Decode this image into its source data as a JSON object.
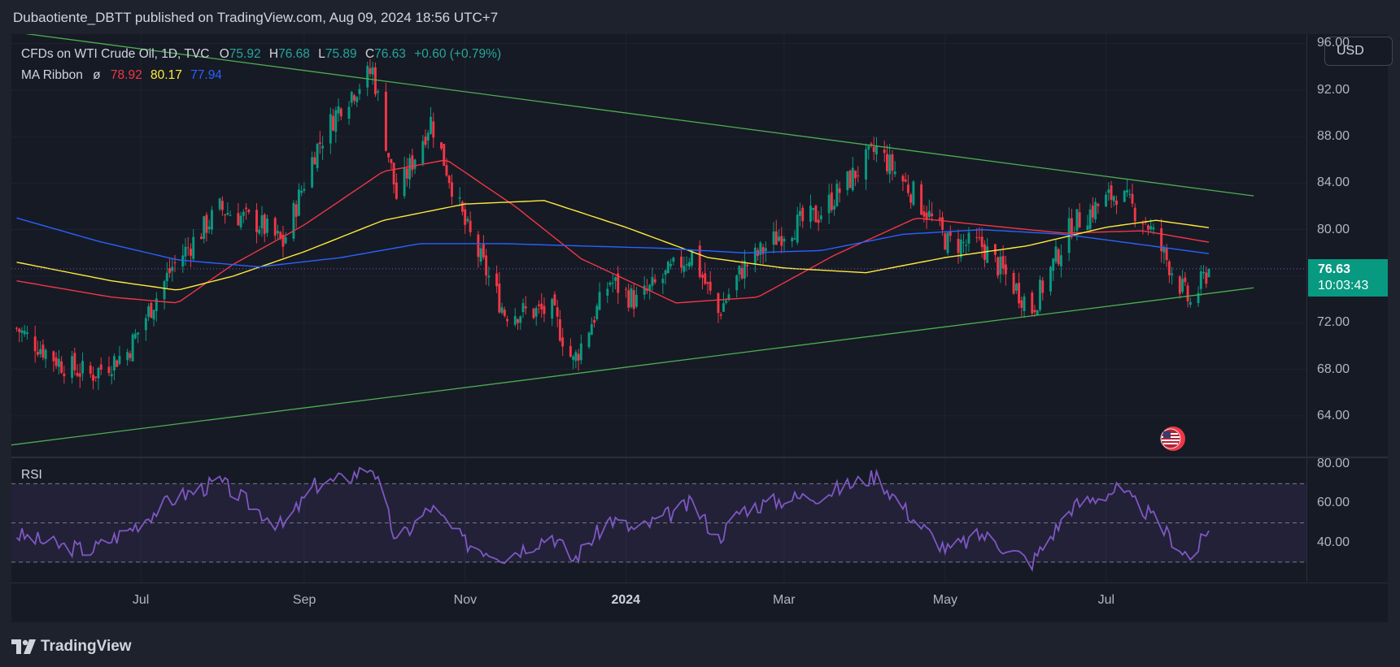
{
  "header": {
    "publisher_line": "Dubaotiente_DBTT published on TradingView.com, Aug 09, 2024 18:56 UTC+7"
  },
  "legend": {
    "symbol": "CFDs on WTI Crude Oil, 1D, TVC",
    "o_label": "O",
    "o_value": "75.92",
    "h_label": "H",
    "h_value": "76.68",
    "l_label": "L",
    "l_value": "75.89",
    "c_label": "C",
    "c_value": "76.63",
    "change": "+0.60 (+0.79%)",
    "ma_title": "MA Ribbon",
    "ma_symbol": "ø",
    "ma1": "78.92",
    "ma2": "80.17",
    "ma3": "77.94"
  },
  "currency": "USD",
  "last_price": {
    "price": "76.63",
    "countdown": "10:03:43"
  },
  "rsi_title": "RSI",
  "brand": "TradingView",
  "colors": {
    "background": "#161a25",
    "up": "#089981",
    "down": "#f23645",
    "ma_fast": "#f23645",
    "ma_mid": "#ffeb3b",
    "ma_slow": "#2962ff",
    "trendline": "#4caf50",
    "rsi": "#7e57c2"
  },
  "icons": {
    "logo": "tradingview-logo-icon",
    "flag": "us-flag-icon"
  },
  "chart_data": [
    {
      "type": "candlestick",
      "title": "CFDs on WTI Crude Oil, 1D, TVC",
      "y_ticks": [
        "96.00",
        "92.00",
        "88.00",
        "84.00",
        "80.00",
        "76.00",
        "72.00",
        "68.00",
        "64.00"
      ],
      "ylim": [
        60.5,
        96.8
      ],
      "x_ticks": [
        {
          "label": "Jul",
          "date": "2023-07-01"
        },
        {
          "label": "Sep",
          "date": "2023-09-01"
        },
        {
          "label": "Nov",
          "date": "2023-11-01"
        },
        {
          "label": "2024",
          "date": "2024-01-01"
        },
        {
          "label": "Mar",
          "date": "2024-03-01"
        },
        {
          "label": "May",
          "date": "2024-05-01"
        },
        {
          "label": "Jul",
          "date": "2024-07-01"
        }
      ],
      "xlim": [
        "2023-05-13",
        "2024-09-15"
      ],
      "last_candle": {
        "date": "2024-08-09",
        "open": 75.92,
        "high": 76.68,
        "low": 75.89,
        "close": 76.63
      },
      "price_anchors": [
        {
          "date": "2023-05-15",
          "close": 71.5
        },
        {
          "date": "2023-06-01",
          "close": 68.5
        },
        {
          "date": "2023-06-12",
          "close": 67.5
        },
        {
          "date": "2023-06-26",
          "close": 69.5
        },
        {
          "date": "2023-07-13",
          "close": 76.8
        },
        {
          "date": "2023-07-31",
          "close": 81.8
        },
        {
          "date": "2023-08-15",
          "close": 80.5
        },
        {
          "date": "2023-08-24",
          "close": 78.8
        },
        {
          "date": "2023-09-05",
          "close": 86.7
        },
        {
          "date": "2023-09-15",
          "close": 90.8
        },
        {
          "date": "2023-09-27",
          "close": 93.7
        },
        {
          "date": "2023-10-06",
          "close": 82.8
        },
        {
          "date": "2023-10-19",
          "close": 89.4
        },
        {
          "date": "2023-11-01",
          "close": 80.4
        },
        {
          "date": "2023-11-16",
          "close": 72.9
        },
        {
          "date": "2023-12-04",
          "close": 73.0
        },
        {
          "date": "2023-12-12",
          "close": 68.6
        },
        {
          "date": "2023-12-26",
          "close": 75.6
        },
        {
          "date": "2024-01-05",
          "close": 73.8
        },
        {
          "date": "2024-01-26",
          "close": 78.0
        },
        {
          "date": "2024-02-05",
          "close": 72.8
        },
        {
          "date": "2024-02-14",
          "close": 76.6
        },
        {
          "date": "2024-03-01",
          "close": 79.9
        },
        {
          "date": "2024-03-14",
          "close": 81.3
        },
        {
          "date": "2024-04-05",
          "close": 86.9
        },
        {
          "date": "2024-04-19",
          "close": 83.1
        },
        {
          "date": "2024-05-02",
          "close": 78.9
        },
        {
          "date": "2024-05-15",
          "close": 78.6
        },
        {
          "date": "2024-06-03",
          "close": 73.2
        },
        {
          "date": "2024-06-18",
          "close": 80.4
        },
        {
          "date": "2024-07-05",
          "close": 83.2
        },
        {
          "date": "2024-07-16",
          "close": 80.8
        },
        {
          "date": "2024-08-02",
          "close": 73.6
        },
        {
          "date": "2024-08-09",
          "close": 76.63
        }
      ],
      "ma_ribbon": [
        {
          "name": "MA Ribbon 1",
          "last": 78.92,
          "points": [
            {
              "date": "2023-05-15",
              "value": 75.6
            },
            {
              "date": "2023-06-20",
              "value": 74.2
            },
            {
              "date": "2023-07-15",
              "value": 73.7
            },
            {
              "date": "2023-08-05",
              "value": 77.0
            },
            {
              "date": "2023-09-01",
              "value": 80.4
            },
            {
              "date": "2023-10-01",
              "value": 85.0
            },
            {
              "date": "2023-10-25",
              "value": 86.0
            },
            {
              "date": "2023-11-20",
              "value": 82.0
            },
            {
              "date": "2023-12-15",
              "value": 77.5
            },
            {
              "date": "2024-01-20",
              "value": 73.7
            },
            {
              "date": "2024-02-20",
              "value": 74.2
            },
            {
              "date": "2024-03-20",
              "value": 77.8
            },
            {
              "date": "2024-04-20",
              "value": 81.0
            },
            {
              "date": "2024-05-15",
              "value": 80.4
            },
            {
              "date": "2024-06-15",
              "value": 79.7
            },
            {
              "date": "2024-07-15",
              "value": 79.9
            },
            {
              "date": "2024-08-09",
              "value": 78.92
            }
          ]
        },
        {
          "name": "MA Ribbon 2",
          "last": 80.17,
          "points": [
            {
              "date": "2023-05-15",
              "value": 77.2
            },
            {
              "date": "2023-06-20",
              "value": 75.6
            },
            {
              "date": "2023-07-15",
              "value": 74.8
            },
            {
              "date": "2023-08-05",
              "value": 76.0
            },
            {
              "date": "2023-09-01",
              "value": 78.1
            },
            {
              "date": "2023-10-01",
              "value": 80.8
            },
            {
              "date": "2023-11-01",
              "value": 82.2
            },
            {
              "date": "2023-12-01",
              "value": 82.5
            },
            {
              "date": "2024-01-01",
              "value": 80.2
            },
            {
              "date": "2024-02-01",
              "value": 77.6
            },
            {
              "date": "2024-03-01",
              "value": 76.7
            },
            {
              "date": "2024-04-01",
              "value": 76.3
            },
            {
              "date": "2024-05-01",
              "value": 77.6
            },
            {
              "date": "2024-06-01",
              "value": 78.6
            },
            {
              "date": "2024-07-01",
              "value": 80.2
            },
            {
              "date": "2024-07-20",
              "value": 80.8
            },
            {
              "date": "2024-08-09",
              "value": 80.17
            }
          ]
        },
        {
          "name": "MA Ribbon 3",
          "last": 77.94,
          "points": [
            {
              "date": "2023-05-15",
              "value": 81.0
            },
            {
              "date": "2023-06-15",
              "value": 79.0
            },
            {
              "date": "2023-07-15",
              "value": 77.4
            },
            {
              "date": "2023-08-15",
              "value": 76.8
            },
            {
              "date": "2023-09-15",
              "value": 77.6
            },
            {
              "date": "2023-10-15",
              "value": 78.8
            },
            {
              "date": "2023-11-15",
              "value": 78.8
            },
            {
              "date": "2023-12-15",
              "value": 78.6
            },
            {
              "date": "2024-01-15",
              "value": 78.4
            },
            {
              "date": "2024-02-15",
              "value": 78.0
            },
            {
              "date": "2024-03-15",
              "value": 78.2
            },
            {
              "date": "2024-04-15",
              "value": 79.6
            },
            {
              "date": "2024-05-15",
              "value": 80.0
            },
            {
              "date": "2024-06-15",
              "value": 79.6
            },
            {
              "date": "2024-07-15",
              "value": 78.7
            },
            {
              "date": "2024-08-09",
              "value": 77.94
            }
          ]
        }
      ],
      "trendlines": [
        {
          "name": "upper",
          "start": {
            "date": "2023-05-13",
            "value": 97.0
          },
          "end": {
            "date": "2024-08-26",
            "value": 82.9
          }
        },
        {
          "name": "lower",
          "start": {
            "date": "2023-05-13",
            "value": 61.5
          },
          "end": {
            "date": "2024-08-26",
            "value": 75.0
          }
        }
      ]
    },
    {
      "type": "line",
      "title": "RSI",
      "y_ticks": [
        "80.00",
        "60.00",
        "40.00"
      ],
      "ylim": [
        20.0,
        83.0
      ],
      "bands": {
        "upper": 70,
        "middle": 50,
        "lower": 30
      },
      "points": [
        {
          "date": "2023-05-15",
          "value": 44
        },
        {
          "date": "2023-06-01",
          "value": 38
        },
        {
          "date": "2023-06-12",
          "value": 36
        },
        {
          "date": "2023-06-26",
          "value": 46
        },
        {
          "date": "2023-07-13",
          "value": 62
        },
        {
          "date": "2023-07-31",
          "value": 71
        },
        {
          "date": "2023-08-15",
          "value": 56
        },
        {
          "date": "2023-08-24",
          "value": 48
        },
        {
          "date": "2023-09-05",
          "value": 69
        },
        {
          "date": "2023-09-15",
          "value": 72
        },
        {
          "date": "2023-09-27",
          "value": 79
        },
        {
          "date": "2023-10-06",
          "value": 40
        },
        {
          "date": "2023-10-19",
          "value": 58
        },
        {
          "date": "2023-11-01",
          "value": 40
        },
        {
          "date": "2023-11-16",
          "value": 33
        },
        {
          "date": "2023-12-04",
          "value": 44
        },
        {
          "date": "2023-12-12",
          "value": 31
        },
        {
          "date": "2023-12-26",
          "value": 52
        },
        {
          "date": "2024-01-05",
          "value": 46
        },
        {
          "date": "2024-01-26",
          "value": 60
        },
        {
          "date": "2024-02-05",
          "value": 42
        },
        {
          "date": "2024-02-14",
          "value": 57
        },
        {
          "date": "2024-03-01",
          "value": 62
        },
        {
          "date": "2024-03-14",
          "value": 64
        },
        {
          "date": "2024-04-05",
          "value": 74
        },
        {
          "date": "2024-04-19",
          "value": 52
        },
        {
          "date": "2024-05-02",
          "value": 36
        },
        {
          "date": "2024-05-15",
          "value": 44
        },
        {
          "date": "2024-06-03",
          "value": 30
        },
        {
          "date": "2024-06-18",
          "value": 58
        },
        {
          "date": "2024-07-05",
          "value": 67
        },
        {
          "date": "2024-07-16",
          "value": 56
        },
        {
          "date": "2024-08-02",
          "value": 32
        },
        {
          "date": "2024-08-09",
          "value": 46
        }
      ]
    }
  ]
}
